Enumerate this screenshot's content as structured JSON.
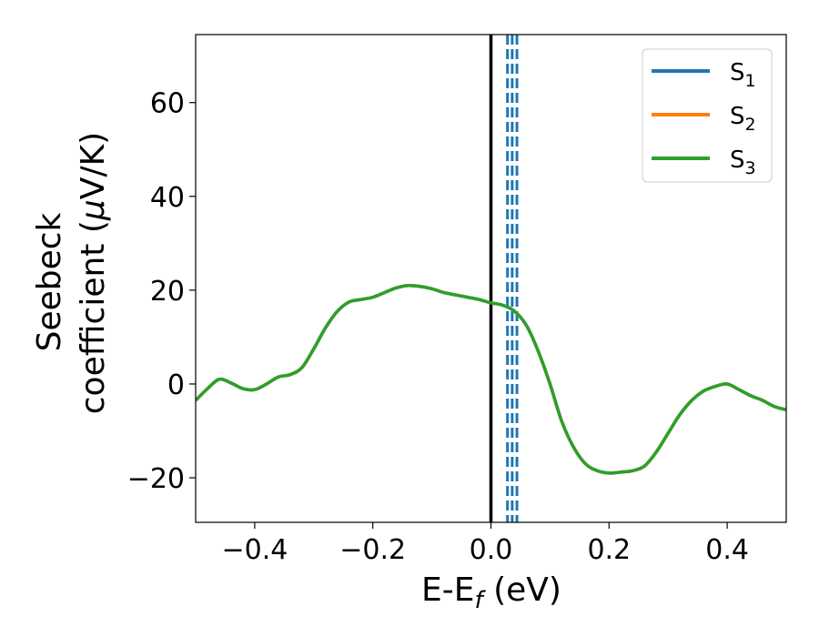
{
  "chart_data": {
    "type": "line",
    "xlabel": {
      "main": "E-E",
      "sub": "f",
      "unit": " (eV)"
    },
    "ylabel": {
      "line1": "Seebeck",
      "line2_pre": "coefficient  (",
      "mu": "μ",
      "line2_post": "V/K)"
    },
    "xlim": [
      -0.5,
      0.5
    ],
    "ylim": [
      -29.5,
      74.5
    ],
    "xticks": [
      -0.4,
      -0.2,
      0.0,
      0.2,
      0.4
    ],
    "xtick_labels": [
      "−0.4",
      "−0.2",
      "0.0",
      "0.2",
      "0.4"
    ],
    "yticks": [
      -20,
      0,
      20,
      40,
      60
    ],
    "ytick_labels": [
      "−20",
      "0",
      "20",
      "40",
      "60"
    ],
    "fermi_line": {
      "x": 0.0,
      "color": "#000000"
    },
    "dashed_lines": {
      "x": [
        0.028,
        0.036,
        0.044
      ],
      "color": "#1f77b4"
    },
    "legend": {
      "placement": "top-right"
    },
    "x": [
      -0.5,
      -0.48,
      -0.46,
      -0.44,
      -0.42,
      -0.4,
      -0.38,
      -0.36,
      -0.34,
      -0.32,
      -0.3,
      -0.28,
      -0.26,
      -0.24,
      -0.22,
      -0.2,
      -0.18,
      -0.16,
      -0.14,
      -0.12,
      -0.1,
      -0.08,
      -0.06,
      -0.04,
      -0.02,
      0.0,
      0.02,
      0.04,
      0.06,
      0.08,
      0.1,
      0.12,
      0.14,
      0.16,
      0.18,
      0.2,
      0.22,
      0.24,
      0.26,
      0.28,
      0.3,
      0.32,
      0.34,
      0.36,
      0.38,
      0.4,
      0.42,
      0.44,
      0.46,
      0.48,
      0.5
    ],
    "series": [
      {
        "name_main": "S",
        "name_sub": "1",
        "color": "#1f77b4",
        "values": [
          -3.5,
          -1.0,
          1.0,
          0.2,
          -1.0,
          -1.2,
          0.0,
          1.5,
          2.0,
          3.5,
          7.5,
          12.0,
          15.5,
          17.5,
          18.0,
          18.5,
          19.5,
          20.5,
          21.0,
          20.8,
          20.3,
          19.5,
          19.0,
          18.5,
          18.0,
          17.3,
          16.8,
          15.5,
          12.5,
          7.0,
          0.0,
          -8.0,
          -13.5,
          -17.0,
          -18.5,
          -19.0,
          -18.8,
          -18.5,
          -17.5,
          -14.5,
          -10.5,
          -6.5,
          -3.5,
          -1.5,
          -0.5,
          0.0,
          -1.2,
          -2.5,
          -3.5,
          -4.8,
          -5.5
        ]
      },
      {
        "name_main": "S",
        "name_sub": "2",
        "color": "#ff7f0e",
        "values": [
          -3.5,
          -1.0,
          1.0,
          0.2,
          -1.0,
          -1.2,
          0.0,
          1.5,
          2.0,
          3.5,
          7.5,
          12.0,
          15.5,
          17.5,
          18.0,
          18.5,
          19.5,
          20.5,
          21.0,
          20.8,
          20.3,
          19.5,
          19.0,
          18.5,
          18.0,
          17.3,
          16.8,
          15.5,
          12.5,
          7.0,
          0.0,
          -8.0,
          -13.5,
          -17.0,
          -18.5,
          -19.0,
          -18.8,
          -18.5,
          -17.5,
          -14.5,
          -10.5,
          -6.5,
          -3.5,
          -1.5,
          -0.5,
          0.0,
          -1.2,
          -2.5,
          -3.5,
          -4.8,
          -5.5
        ]
      },
      {
        "name_main": "S",
        "name_sub": "3",
        "color": "#2ca02c",
        "values": [
          -3.5,
          -1.0,
          1.0,
          0.2,
          -1.0,
          -1.2,
          0.0,
          1.5,
          2.0,
          3.5,
          7.5,
          12.0,
          15.5,
          17.5,
          18.0,
          18.5,
          19.5,
          20.5,
          21.0,
          20.8,
          20.3,
          19.5,
          19.0,
          18.5,
          18.0,
          17.3,
          16.8,
          15.5,
          12.5,
          7.0,
          0.0,
          -8.0,
          -13.5,
          -17.0,
          -18.5,
          -19.0,
          -18.8,
          -18.5,
          -17.5,
          -14.5,
          -10.5,
          -6.5,
          -3.5,
          -1.5,
          -0.5,
          0.0,
          -1.2,
          -2.5,
          -3.5,
          -4.8,
          -5.5
        ]
      }
    ]
  }
}
